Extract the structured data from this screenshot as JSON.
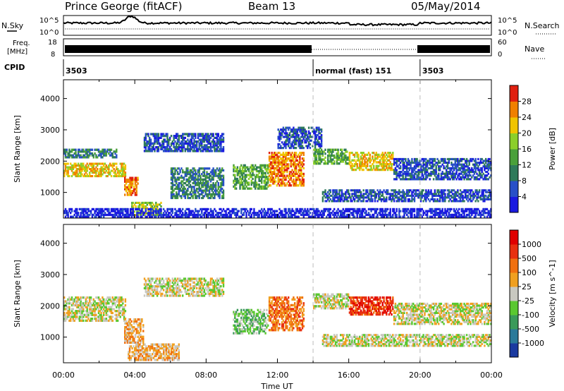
{
  "header": {
    "station": "Prince George (fitACF)",
    "beam": "Beam 13",
    "date": "05/May/2014"
  },
  "strip": {
    "nsky_label": "N.Sky",
    "nsky_ticks": [
      "10^5",
      "10^0"
    ],
    "nsearch_label": "N.Search",
    "nsearch_ticks": [
      "10^5",
      "10^0"
    ],
    "freq_label_1": "Freq.",
    "freq_label_2": "[MHz]",
    "freq_ticks": [
      "18",
      "8"
    ],
    "nave_label": "Nave",
    "nave_ticks": [
      "60",
      "0"
    ],
    "cpid_label": "CPID",
    "cpid_segments": [
      {
        "label": "3503",
        "start_hour": 0,
        "end_hour": 14
      },
      {
        "label": "normal (fast) 151",
        "start_hour": 14,
        "end_hour": 20
      },
      {
        "label": "3503",
        "start_hour": 20,
        "end_hour": 24
      }
    ]
  },
  "chart_data": [
    {
      "type": "heatmap",
      "panel": "power",
      "ylabel": "Slant Range [km]",
      "xlabel": "",
      "x_range_hours": [
        0,
        24
      ],
      "ylim": [
        180,
        4600
      ],
      "yticks": [
        1000,
        2000,
        3000,
        4000
      ],
      "colorbar": {
        "label": "Power [dB]",
        "ticks": [
          "4",
          "8",
          "12",
          "16",
          "20",
          "24",
          "28"
        ],
        "colors": [
          "#1a1ae0",
          "#2850c8",
          "#2f7a5a",
          "#4aa03a",
          "#8ccf2a",
          "#f0c400",
          "#f08000",
          "#e02010"
        ]
      },
      "regions": [
        {
          "t0": 0.0,
          "t1": 3.5,
          "r0": 1500,
          "r1": 1950,
          "level": 5
        },
        {
          "t0": 0.0,
          "t1": 3.0,
          "r0": 2100,
          "r1": 2400,
          "level": 2
        },
        {
          "t0": 3.4,
          "t1": 4.2,
          "r0": 900,
          "r1": 1500,
          "level": 6
        },
        {
          "t0": 3.8,
          "t1": 5.5,
          "r0": 250,
          "r1": 700,
          "level": 4
        },
        {
          "t0": 4.5,
          "t1": 9.0,
          "r0": 2300,
          "r1": 2900,
          "level": 1
        },
        {
          "t0": 6.0,
          "t1": 9.0,
          "r0": 800,
          "r1": 1800,
          "level": 2
        },
        {
          "t0": 9.5,
          "t1": 11.5,
          "r0": 1100,
          "r1": 1900,
          "level": 3
        },
        {
          "t0": 11.5,
          "t1": 13.5,
          "r0": 1200,
          "r1": 2300,
          "level": 6
        },
        {
          "t0": 12.0,
          "t1": 14.5,
          "r0": 2400,
          "r1": 3100,
          "level": 1
        },
        {
          "t0": 14.0,
          "t1": 16.0,
          "r0": 1900,
          "r1": 2400,
          "level": 3
        },
        {
          "t0": 16.0,
          "t1": 18.5,
          "r0": 1700,
          "r1": 2300,
          "level": 5
        },
        {
          "t0": 18.5,
          "t1": 24.0,
          "r0": 1400,
          "r1": 2100,
          "level": 1
        },
        {
          "t0": 14.5,
          "t1": 24.0,
          "r0": 700,
          "r1": 1100,
          "level": 1
        },
        {
          "t0": 0.0,
          "t1": 24.0,
          "r0": 200,
          "r1": 500,
          "level": 0
        }
      ]
    },
    {
      "type": "heatmap",
      "panel": "velocity",
      "ylabel": "Slant Range [km]",
      "xlabel": "Time UT",
      "x_range_hours": [
        0,
        24
      ],
      "xticks": [
        "00:00",
        "04:00",
        "08:00",
        "12:00",
        "16:00",
        "20:00",
        "00:00"
      ],
      "ylim": [
        180,
        4600
      ],
      "yticks": [
        1000,
        2000,
        3000,
        4000
      ],
      "colorbar": {
        "label": "Velocity [m s^-1]",
        "ticks": [
          "1000",
          "500",
          "100",
          "25",
          "-25",
          "-100",
          "-500",
          "-1000"
        ],
        "colors": [
          "#1a3aa0",
          "#2a7a9a",
          "#3a9a5a",
          "#5ac830",
          "#c8c8c0",
          "#f0a020",
          "#f07010",
          "#e83010",
          "#e00000"
        ]
      },
      "regions": [
        {
          "t0": 0.0,
          "t1": 3.5,
          "r0": 1500,
          "r1": 2300,
          "level": 4
        },
        {
          "t0": 3.4,
          "t1": 4.5,
          "r0": 800,
          "r1": 1600,
          "level": 5
        },
        {
          "t0": 3.6,
          "t1": 6.5,
          "r0": 250,
          "r1": 800,
          "level": 5
        },
        {
          "t0": 4.5,
          "t1": 9.0,
          "r0": 2300,
          "r1": 2900,
          "level": 4
        },
        {
          "t0": 9.5,
          "t1": 11.5,
          "r0": 1100,
          "r1": 1900,
          "level": 3
        },
        {
          "t0": 11.5,
          "t1": 13.5,
          "r0": 1200,
          "r1": 2300,
          "level": 6
        },
        {
          "t0": 14.0,
          "t1": 16.0,
          "r0": 1900,
          "r1": 2400,
          "level": 4
        },
        {
          "t0": 16.0,
          "t1": 18.5,
          "r0": 1700,
          "r1": 2300,
          "level": 7
        },
        {
          "t0": 18.5,
          "t1": 24.0,
          "r0": 1400,
          "r1": 2100,
          "level": 4
        },
        {
          "t0": 14.5,
          "t1": 24.0,
          "r0": 700,
          "r1": 1100,
          "level": 4
        }
      ]
    }
  ]
}
